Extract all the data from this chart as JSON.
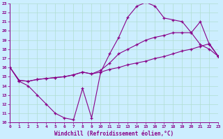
{
  "bg_color": "#cceeff",
  "line_color": "#880088",
  "xlabel": "Windchill (Refroidissement éolien,°C)",
  "grid_color": "#aaddcc",
  "xlim": [
    0,
    23
  ],
  "ylim": [
    10,
    23
  ],
  "xticks": [
    0,
    1,
    2,
    3,
    4,
    5,
    6,
    7,
    8,
    9,
    10,
    11,
    12,
    13,
    14,
    15,
    16,
    17,
    18,
    19,
    20,
    21,
    22,
    23
  ],
  "yticks": [
    10,
    11,
    12,
    13,
    14,
    15,
    16,
    17,
    18,
    19,
    20,
    21,
    22,
    23
  ],
  "line1_x": [
    0,
    1,
    2,
    3,
    4,
    5,
    6,
    7,
    8,
    9,
    10,
    11,
    12,
    13,
    14,
    15,
    16,
    17,
    18,
    19,
    20,
    21,
    22,
    23
  ],
  "line1_y": [
    16.0,
    14.5,
    14.0,
    13.0,
    12.0,
    11.0,
    10.5,
    10.3,
    13.7,
    10.5,
    15.5,
    17.5,
    19.3,
    21.5,
    22.7,
    23.1,
    22.7,
    21.4,
    21.2,
    21.0,
    19.8,
    21.0,
    18.5,
    17.2
  ],
  "line2_x": [
    0,
    1,
    2,
    3,
    4,
    5,
    6,
    7,
    8,
    9,
    10,
    11,
    12,
    13,
    14,
    15,
    16,
    17,
    18,
    19,
    20,
    21,
    22,
    23
  ],
  "line2_y": [
    16.0,
    14.6,
    14.5,
    14.7,
    14.8,
    14.9,
    15.0,
    15.2,
    15.5,
    15.3,
    15.7,
    16.5,
    17.5,
    18.0,
    18.5,
    19.0,
    19.3,
    19.5,
    19.8,
    19.8,
    19.8,
    18.5,
    18.0,
    17.2
  ],
  "line3_x": [
    0,
    1,
    2,
    3,
    4,
    5,
    6,
    7,
    8,
    9,
    10,
    11,
    12,
    13,
    14,
    15,
    16,
    17,
    18,
    19,
    20,
    21,
    22,
    23
  ],
  "line3_y": [
    16.0,
    14.6,
    14.5,
    14.7,
    14.8,
    14.9,
    15.0,
    15.2,
    15.5,
    15.3,
    15.5,
    15.8,
    16.0,
    16.3,
    16.5,
    16.7,
    17.0,
    17.2,
    17.5,
    17.8,
    18.0,
    18.3,
    18.6,
    17.2
  ]
}
